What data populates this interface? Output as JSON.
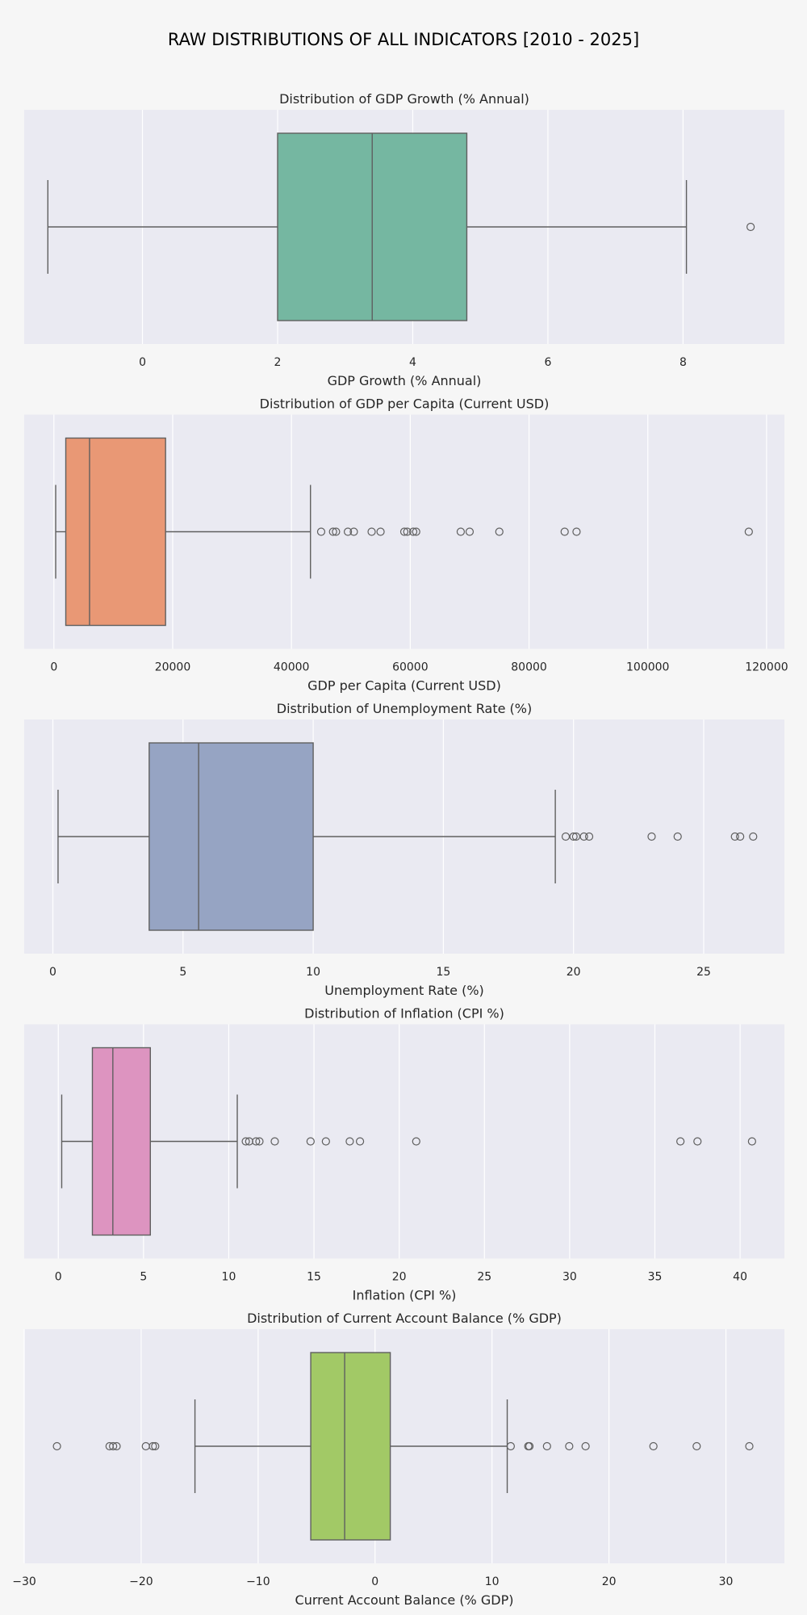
{
  "suptitle": "RAW DISTRIBUTIONS OF ALL INDICATORS [2010 - 2025]",
  "chart_data": [
    {
      "type": "boxplot",
      "title": "Distribution of GDP Growth (% Annual)",
      "xlabel": "GDP Growth (% Annual)",
      "xlim": [
        -1.75,
        9.5
      ],
      "ticks": [
        0,
        2,
        4,
        6,
        8
      ],
      "tick_labels": [
        "0",
        "2",
        "4",
        "6",
        "8"
      ],
      "color": "#75b7a1",
      "stats": {
        "whisker_low": -1.4,
        "q1": 2.0,
        "median": 3.4,
        "q3": 4.8,
        "whisker_high": 8.05
      },
      "outliers": [
        9.0
      ]
    },
    {
      "type": "boxplot",
      "title": "Distribution of GDP per Capita (Current USD)",
      "xlabel": "GDP per Capita (Current USD)",
      "xlim": [
        -5000,
        123000
      ],
      "ticks": [
        0,
        20000,
        40000,
        60000,
        80000,
        100000,
        120000
      ],
      "tick_labels": [
        "0",
        "20000",
        "40000",
        "60000",
        "80000",
        "100000",
        "120000"
      ],
      "color": "#e99875",
      "stats": {
        "whisker_low": 300,
        "q1": 2000,
        "median": 6000,
        "q3": 18800,
        "whisker_high": 43200
      },
      "outliers": [
        45000,
        47000,
        47500,
        49500,
        50500,
        53500,
        55000,
        59000,
        59500,
        60500,
        61000,
        68500,
        70000,
        75000,
        86000,
        88000,
        117000
      ]
    },
    {
      "type": "boxplot",
      "title": "Distribution of Unemployment Rate (%)",
      "xlabel": "Unemployment Rate (%)",
      "xlim": [
        -1.1,
        28.1
      ],
      "ticks": [
        0,
        5,
        10,
        15,
        20,
        25
      ],
      "tick_labels": [
        "0",
        "5",
        "10",
        "15",
        "20",
        "25"
      ],
      "color": "#96a4c3",
      "stats": {
        "whisker_low": 0.2,
        "q1": 3.7,
        "median": 5.6,
        "q3": 10.0,
        "whisker_high": 19.3
      },
      "outliers": [
        19.7,
        20.0,
        20.1,
        20.4,
        20.6,
        23.0,
        24.0,
        26.2,
        26.4,
        26.9
      ]
    },
    {
      "type": "boxplot",
      "title": "Distribution of Inflation (CPI %)",
      "xlabel": "Inflation (CPI %)",
      "xlim": [
        -2.0,
        42.6
      ],
      "ticks": [
        0,
        5,
        10,
        15,
        20,
        25,
        30,
        35,
        40
      ],
      "tick_labels": [
        "0",
        "5",
        "10",
        "15",
        "20",
        "25",
        "30",
        "35",
        "40"
      ],
      "color": "#dd94c0",
      "stats": {
        "whisker_low": 0.2,
        "q1": 2.0,
        "median": 3.2,
        "q3": 5.4,
        "whisker_high": 10.5
      },
      "outliers": [
        11.0,
        11.2,
        11.6,
        11.8,
        12.7,
        14.8,
        15.7,
        17.1,
        17.7,
        21.0,
        36.5,
        37.5,
        40.7
      ]
    },
    {
      "type": "boxplot",
      "title": "Distribution of Current Account Balance (% GDP)",
      "xlabel": "Current Account Balance (% GDP)",
      "xlim": [
        -30.0,
        35.0
      ],
      "ticks": [
        -30,
        -20,
        -10,
        0,
        10,
        20,
        30
      ],
      "tick_labels": [
        "−30",
        "−20",
        "−10",
        "0",
        "10",
        "20",
        "30"
      ],
      "color": "#a2c966",
      "stats": {
        "whisker_low": -15.4,
        "q1": -5.5,
        "median": -2.6,
        "q3": 1.3,
        "whisker_high": 11.3
      },
      "outliers": [
        -27.2,
        -22.7,
        -22.4,
        -22.1,
        -19.6,
        -19.0,
        -18.8,
        11.6,
        13.1,
        13.2,
        14.7,
        16.6,
        18.0,
        23.8,
        27.5,
        32.0
      ]
    }
  ]
}
